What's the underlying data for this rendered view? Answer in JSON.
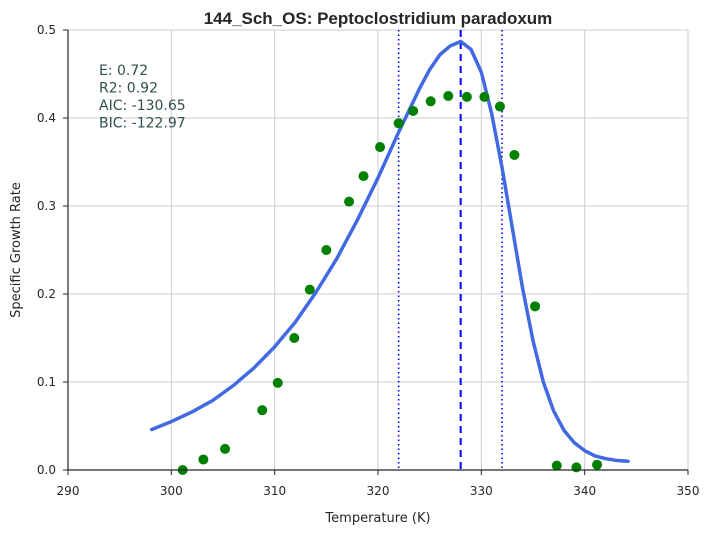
{
  "chart_data": {
    "type": "scatter",
    "title": "144_Sch_OS: Peptoclostridium paradoxum",
    "xlabel": "Temperature (K)",
    "ylabel": "Specific Growth Rate",
    "xlim": [
      290,
      350
    ],
    "ylim": [
      0,
      0.5
    ],
    "xticks": [
      "290",
      "300",
      "310",
      "320",
      "330",
      "340",
      "350"
    ],
    "yticks": [
      "0.0",
      "0.1",
      "0.2",
      "0.3",
      "0.4",
      "0.5"
    ],
    "grid": true,
    "stats": [
      {
        "label": "E:",
        "value": "0.72"
      },
      {
        "label": "R2:",
        "value": "0.92"
      },
      {
        "label": "AIC:",
        "value": "-130.65"
      },
      {
        "label": "BIC:",
        "value": "-122.97"
      }
    ],
    "observed": {
      "color": "#008000",
      "x": [
        301.1,
        303.1,
        305.2,
        308.8,
        310.3,
        311.9,
        313.4,
        315.0,
        317.2,
        318.6,
        320.2,
        322.0,
        323.4,
        325.1,
        326.8,
        328.6,
        330.3,
        331.8,
        333.2,
        335.2,
        337.3,
        339.2,
        341.2
      ],
      "y": [
        0.0,
        0.012,
        0.024,
        0.068,
        0.099,
        0.15,
        0.205,
        0.25,
        0.305,
        0.334,
        0.367,
        0.394,
        0.408,
        0.419,
        0.425,
        0.424,
        0.424,
        0.413,
        0.358,
        0.186,
        0.005,
        0.003,
        0.006
      ]
    },
    "fit": {
      "color": "#4169e1",
      "x": [
        298.1,
        300,
        302,
        304,
        306,
        308,
        310,
        312,
        314,
        316,
        318,
        320,
        322,
        324,
        325,
        326,
        327,
        328,
        329,
        330,
        331,
        332,
        333,
        334,
        335,
        336,
        337,
        338,
        339,
        340,
        341,
        342,
        343,
        344.2
      ],
      "y": [
        0.046,
        0.055,
        0.066,
        0.079,
        0.096,
        0.116,
        0.14,
        0.168,
        0.202,
        0.24,
        0.284,
        0.332,
        0.384,
        0.433,
        0.455,
        0.472,
        0.482,
        0.487,
        0.478,
        0.452,
        0.405,
        0.344,
        0.275,
        0.206,
        0.147,
        0.1,
        0.067,
        0.045,
        0.031,
        0.022,
        0.016,
        0.013,
        0.011,
        0.01
      ]
    },
    "vlines": [
      {
        "x": 328.0,
        "style": "dashed",
        "color": "#0000ff"
      },
      {
        "x": 322.0,
        "style": "dotted",
        "color": "#0000ff"
      },
      {
        "x": 332.0,
        "style": "dotted",
        "color": "#0000ff"
      }
    ]
  }
}
